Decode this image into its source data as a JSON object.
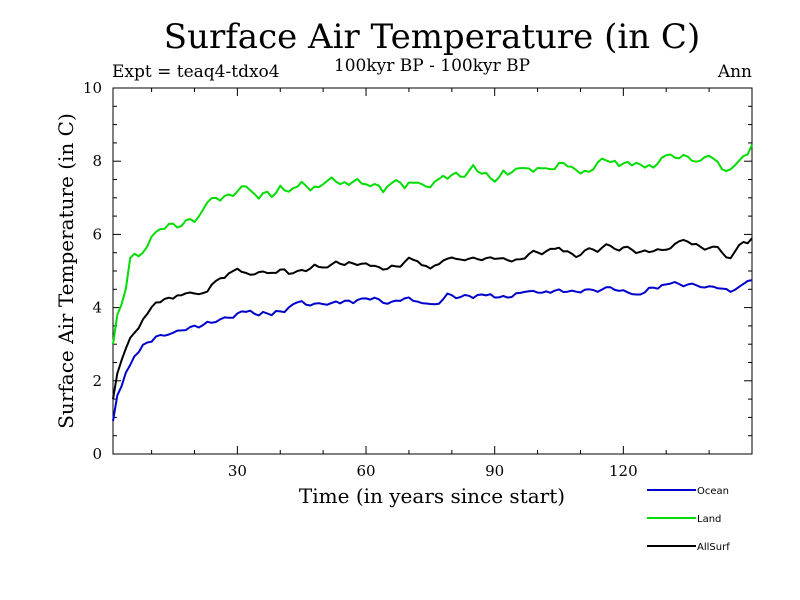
{
  "chart_data": {
    "type": "line",
    "title": "Surface Air Temperature (in C)",
    "subtitle": "100kyr BP - 100kyr BP",
    "expt_label": "Expt = teaq4-tdxo4",
    "season_label": "Ann",
    "xlabel": "Time (in years since start)",
    "ylabel": "Surface Air Temperature (in C)",
    "xlim": [
      1,
      150
    ],
    "ylim": [
      0,
      10
    ],
    "x_ticks": [
      30,
      60,
      90,
      120
    ],
    "y_ticks": [
      0,
      2,
      4,
      6,
      8,
      10
    ],
    "x_anchors": [
      1,
      2,
      3,
      4,
      5,
      6,
      7,
      8,
      10,
      12,
      14,
      16,
      18,
      20,
      23,
      26,
      30,
      35,
      40,
      45,
      50,
      55,
      60,
      65,
      70,
      75,
      80,
      85,
      90,
      95,
      100,
      105,
      110,
      115,
      120,
      125,
      130,
      135,
      140,
      145,
      150
    ],
    "series": [
      {
        "name": "Ocean",
        "color": "#0000cc",
        "anchor_values": [
          0.9,
          1.6,
          1.9,
          2.3,
          2.45,
          2.6,
          2.8,
          3.0,
          3.15,
          3.25,
          3.3,
          3.35,
          3.4,
          3.5,
          3.55,
          3.75,
          3.8,
          3.85,
          3.9,
          4.1,
          4.1,
          4.2,
          4.25,
          4.2,
          4.25,
          4.1,
          4.35,
          4.3,
          4.3,
          4.35,
          4.4,
          4.5,
          4.4,
          4.5,
          4.5,
          4.45,
          4.6,
          4.65,
          4.6,
          4.45,
          4.75
        ],
        "noise": 0.12,
        "seed": 11
      },
      {
        "name": "Land",
        "color": "#00dd00",
        "anchor_values": [
          3.0,
          3.8,
          4.1,
          4.5,
          5.3,
          5.35,
          5.4,
          5.5,
          5.9,
          6.2,
          6.3,
          6.3,
          6.4,
          6.5,
          6.8,
          6.9,
          7.3,
          7.1,
          7.2,
          7.3,
          7.4,
          7.5,
          7.5,
          7.3,
          7.5,
          7.25,
          7.6,
          7.7,
          7.6,
          7.7,
          7.8,
          7.9,
          7.8,
          7.9,
          7.95,
          7.85,
          8.0,
          8.05,
          8.0,
          7.8,
          8.45
        ],
        "noise": 0.22,
        "seed": 23
      },
      {
        "name": "AllSurf",
        "color": "#000000",
        "anchor_values": [
          1.5,
          2.2,
          2.6,
          3.0,
          3.3,
          3.4,
          3.5,
          3.7,
          4.0,
          4.2,
          4.3,
          4.3,
          4.35,
          4.4,
          4.5,
          4.8,
          5.0,
          4.9,
          5.0,
          5.05,
          5.1,
          5.2,
          5.25,
          5.1,
          5.25,
          5.05,
          5.4,
          5.35,
          5.3,
          5.4,
          5.45,
          5.55,
          5.45,
          5.6,
          5.6,
          5.5,
          5.7,
          5.75,
          5.7,
          5.45,
          5.9
        ],
        "noise": 0.14,
        "seed": 37
      }
    ]
  }
}
